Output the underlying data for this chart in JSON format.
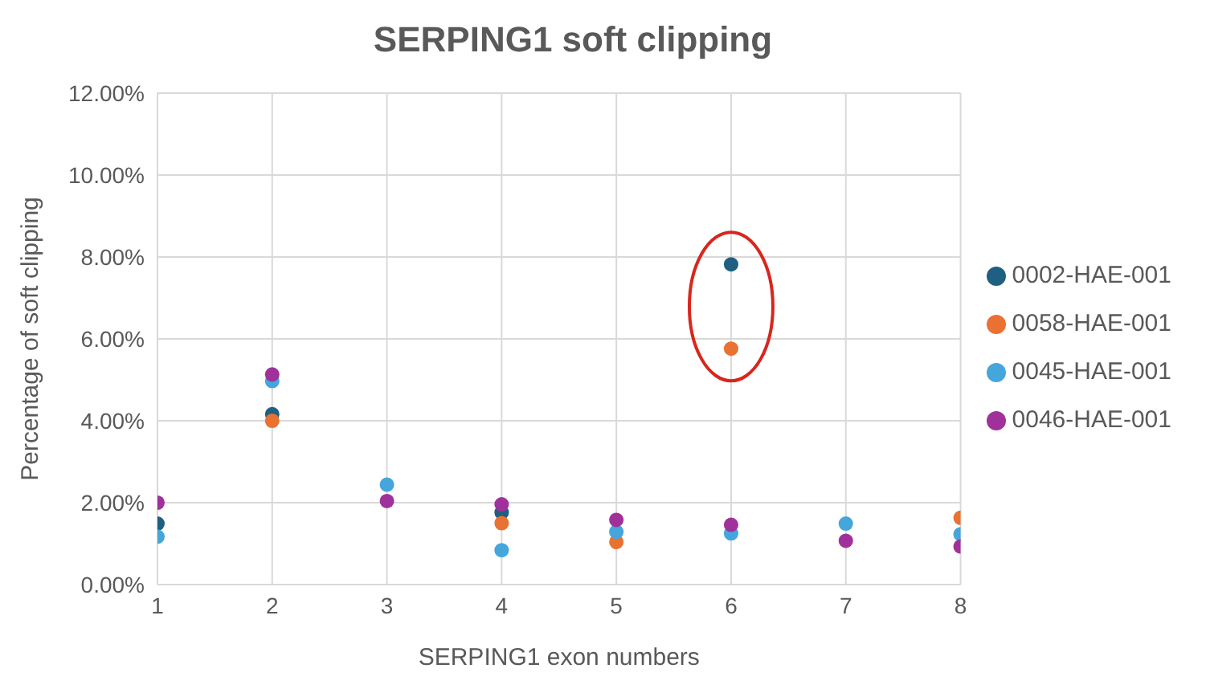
{
  "chart_data": {
    "type": "scatter",
    "title": "SERPING1 soft clipping",
    "xlabel": "SERPING1 exon numbers",
    "ylabel": "Percentage of soft clipping",
    "x": [
      1,
      2,
      3,
      4,
      5,
      6,
      7,
      8
    ],
    "series": [
      {
        "name": "0002-HAE-001",
        "color": "#1f5f82",
        "values": [
          1.49,
          4.16,
          null,
          1.76,
          null,
          7.82,
          null,
          null
        ]
      },
      {
        "name": "0058-HAE-001",
        "color": "#e97132",
        "values": [
          null,
          4.0,
          null,
          1.5,
          1.04,
          5.76,
          null,
          1.63
        ]
      },
      {
        "name": "0045-HAE-001",
        "color": "#45a6dc",
        "values": [
          1.17,
          4.97,
          2.44,
          0.84,
          1.29,
          1.25,
          1.49,
          1.23
        ]
      },
      {
        "name": "0046-HAE-001",
        "color": "#a0319a",
        "values": [
          2.0,
          5.13,
          2.04,
          1.96,
          1.58,
          1.46,
          1.07,
          0.93
        ]
      }
    ],
    "xlim": [
      1,
      8
    ],
    "xticks": [
      1,
      2,
      3,
      4,
      5,
      6,
      7,
      8
    ],
    "ylim": [
      0,
      12
    ],
    "yticks": [
      {
        "value": 0,
        "label": "0.00%"
      },
      {
        "value": 2,
        "label": "2.00%"
      },
      {
        "value": 4,
        "label": "4.00%"
      },
      {
        "value": 6,
        "label": "6.00%"
      },
      {
        "value": 8,
        "label": "8.00%"
      },
      {
        "value": 10,
        "label": "10.00%"
      },
      {
        "value": 12,
        "label": "12.00%"
      }
    ],
    "grid": true,
    "legend": "right",
    "marker": "circle"
  }
}
